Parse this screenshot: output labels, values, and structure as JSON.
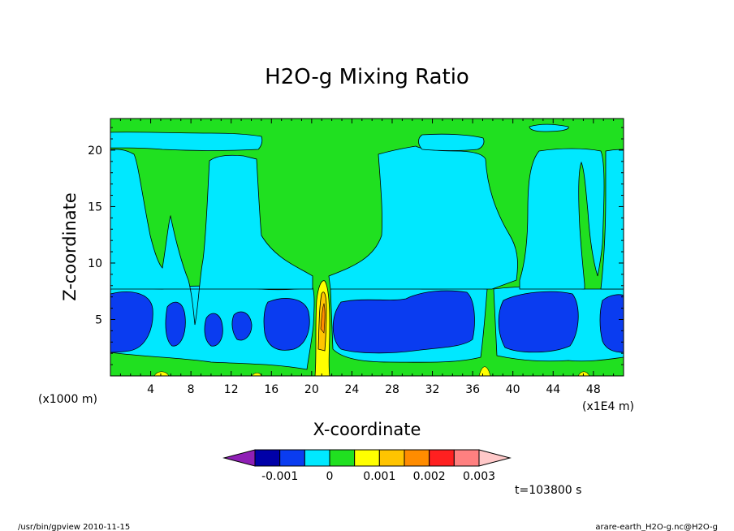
{
  "chart_data": {
    "type": "heatmap",
    "title": "H2O-g Mixing Ratio",
    "xlabel": "X-coordinate",
    "ylabel": "Z-coordinate",
    "x_unit": "(x1E4 m)",
    "y_unit": "(x1000 m)",
    "xlim": [
      0,
      51
    ],
    "ylim": [
      0,
      22.8
    ],
    "x_ticks": [
      "4",
      "8",
      "12",
      "16",
      "20",
      "24",
      "28",
      "32",
      "36",
      "40",
      "44",
      "48"
    ],
    "x_tick_values": [
      4,
      8,
      12,
      16,
      20,
      24,
      28,
      32,
      36,
      40,
      44,
      48
    ],
    "y_ticks": [
      "5",
      "10",
      "15",
      "20"
    ],
    "y_tick_values": [
      5,
      10,
      15,
      20
    ],
    "colorbar": {
      "colors": [
        "#8f1fb5",
        "#0000a8",
        "#0a3cf0",
        "#00e8ff",
        "#20e020",
        "#ffff00",
        "#ffc400",
        "#ff8c00",
        "#ff2020",
        "#ff8080",
        "#ffc8c8"
      ],
      "tick_labels": [
        "-0.001",
        "0",
        "0.001",
        "0.002",
        "0.003"
      ],
      "tick_values": [
        -0.001,
        0,
        0.001,
        0.002,
        0.003
      ],
      "levels": [
        -0.0015,
        -0.001,
        -0.0005,
        0,
        0.0005,
        0.001,
        0.0015,
        0.002,
        0.0025,
        0.003
      ]
    },
    "time_label": "t=103800 s",
    "grid": false,
    "legend": "colorbar-bottom"
  },
  "footer": {
    "left": "/usr/bin/gpview  2010-11-15",
    "right": "arare-earth_H2O-g.nc@H2O-g"
  },
  "colors": {
    "background": "#ffffff",
    "frame": "#000000"
  }
}
